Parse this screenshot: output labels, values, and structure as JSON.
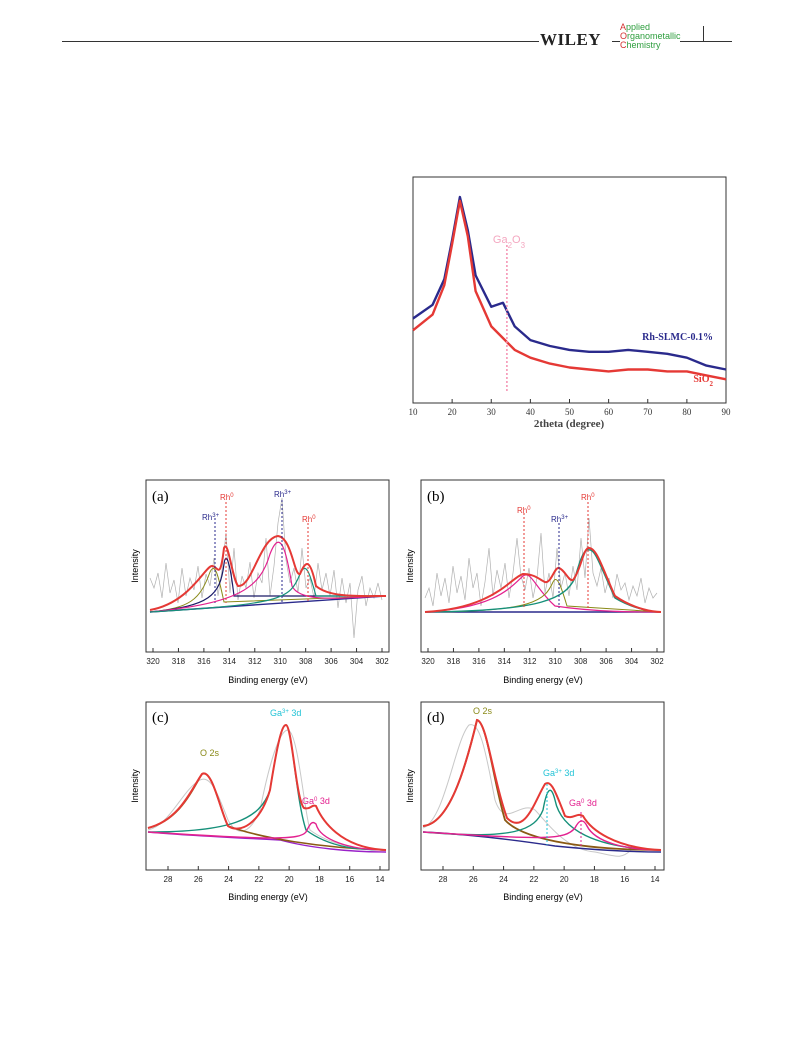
{
  "header": {
    "publisher": "WILEY",
    "journal_lines": [
      "Applied",
      "Organometallic",
      "Chemistry"
    ]
  },
  "figures": {
    "xrd": {
      "xlabel": "2theta (degree)",
      "xticks": [
        "10",
        "20",
        "30",
        "40",
        "50",
        "60",
        "70",
        "80",
        "90"
      ],
      "annotation": "Ga2O3",
      "series_labels": [
        "Rh-SLMC-0.1%",
        "SiO2"
      ]
    },
    "xps_a": {
      "panel": "(a)",
      "ylabel": "Intensity",
      "xlabel": "Binding energy (eV)",
      "xticks": [
        "320",
        "318",
        "316",
        "314",
        "312",
        "310",
        "308",
        "306",
        "304",
        "302"
      ],
      "peak_labels": [
        "Rh3+",
        "Rh0",
        "Rh3+",
        "Rh0"
      ]
    },
    "xps_b": {
      "panel": "(b)",
      "ylabel": "Intensity",
      "xlabel": "Binding energy (eV)",
      "xticks": [
        "320",
        "318",
        "316",
        "314",
        "312",
        "310",
        "308",
        "306",
        "304",
        "302"
      ],
      "peak_labels": [
        "Rh0",
        "Rh3+",
        "Rh0"
      ]
    },
    "xps_c": {
      "panel": "(c)",
      "ylabel": "Intensity",
      "xlabel": "Binding energy (eV)",
      "xticks": [
        "28",
        "26",
        "24",
        "22",
        "20",
        "18",
        "16",
        "14"
      ],
      "peak_labels": [
        "O 2s",
        "Ga3+ 3d",
        "Ga0 3d"
      ]
    },
    "xps_d": {
      "panel": "(d)",
      "ylabel": "Intensity",
      "xlabel": "Binding energy (eV)",
      "xticks": [
        "28",
        "26",
        "24",
        "22",
        "20",
        "18",
        "16",
        "14"
      ],
      "peak_labels": [
        "O 2s",
        "Ga3+ 3d",
        "Ga0 3d"
      ]
    }
  },
  "chart_data": [
    {
      "type": "line",
      "id": "xrd",
      "xlabel": "2theta (degree)",
      "xlim": [
        10,
        90
      ],
      "series": [
        {
          "name": "Rh-SLMC-0.1%",
          "color": "#2a2a8c",
          "x": [
            10,
            15,
            18,
            20,
            22,
            24,
            26,
            30,
            33,
            36,
            40,
            45,
            50,
            55,
            60,
            65,
            70,
            75,
            80,
            85,
            90
          ],
          "y": [
            0.38,
            0.45,
            0.58,
            0.78,
            1.0,
            0.83,
            0.6,
            0.44,
            0.46,
            0.34,
            0.27,
            0.24,
            0.22,
            0.21,
            0.21,
            0.22,
            0.21,
            0.2,
            0.18,
            0.14,
            0.12
          ]
        },
        {
          "name": "SiO2",
          "color": "#e53935",
          "x": [
            10,
            15,
            18,
            20,
            22,
            24,
            26,
            30,
            33,
            36,
            40,
            45,
            50,
            55,
            60,
            65,
            70,
            75,
            80,
            85,
            90
          ],
          "y": [
            0.32,
            0.4,
            0.55,
            0.76,
            0.98,
            0.8,
            0.52,
            0.34,
            0.28,
            0.22,
            0.18,
            0.15,
            0.13,
            0.12,
            0.11,
            0.12,
            0.12,
            0.11,
            0.11,
            0.09,
            0.07
          ]
        }
      ],
      "annotation": {
        "text": "Ga2O3",
        "x": 34,
        "color": "#f48fb1"
      }
    }
  ],
  "colors": {
    "envelope": "#e53935",
    "rh3": "#2a2a8c",
    "rh0": "#e53935",
    "ga3": "#22c3d6",
    "ga0": "#e3218f",
    "o2s": "#8a8a18"
  }
}
